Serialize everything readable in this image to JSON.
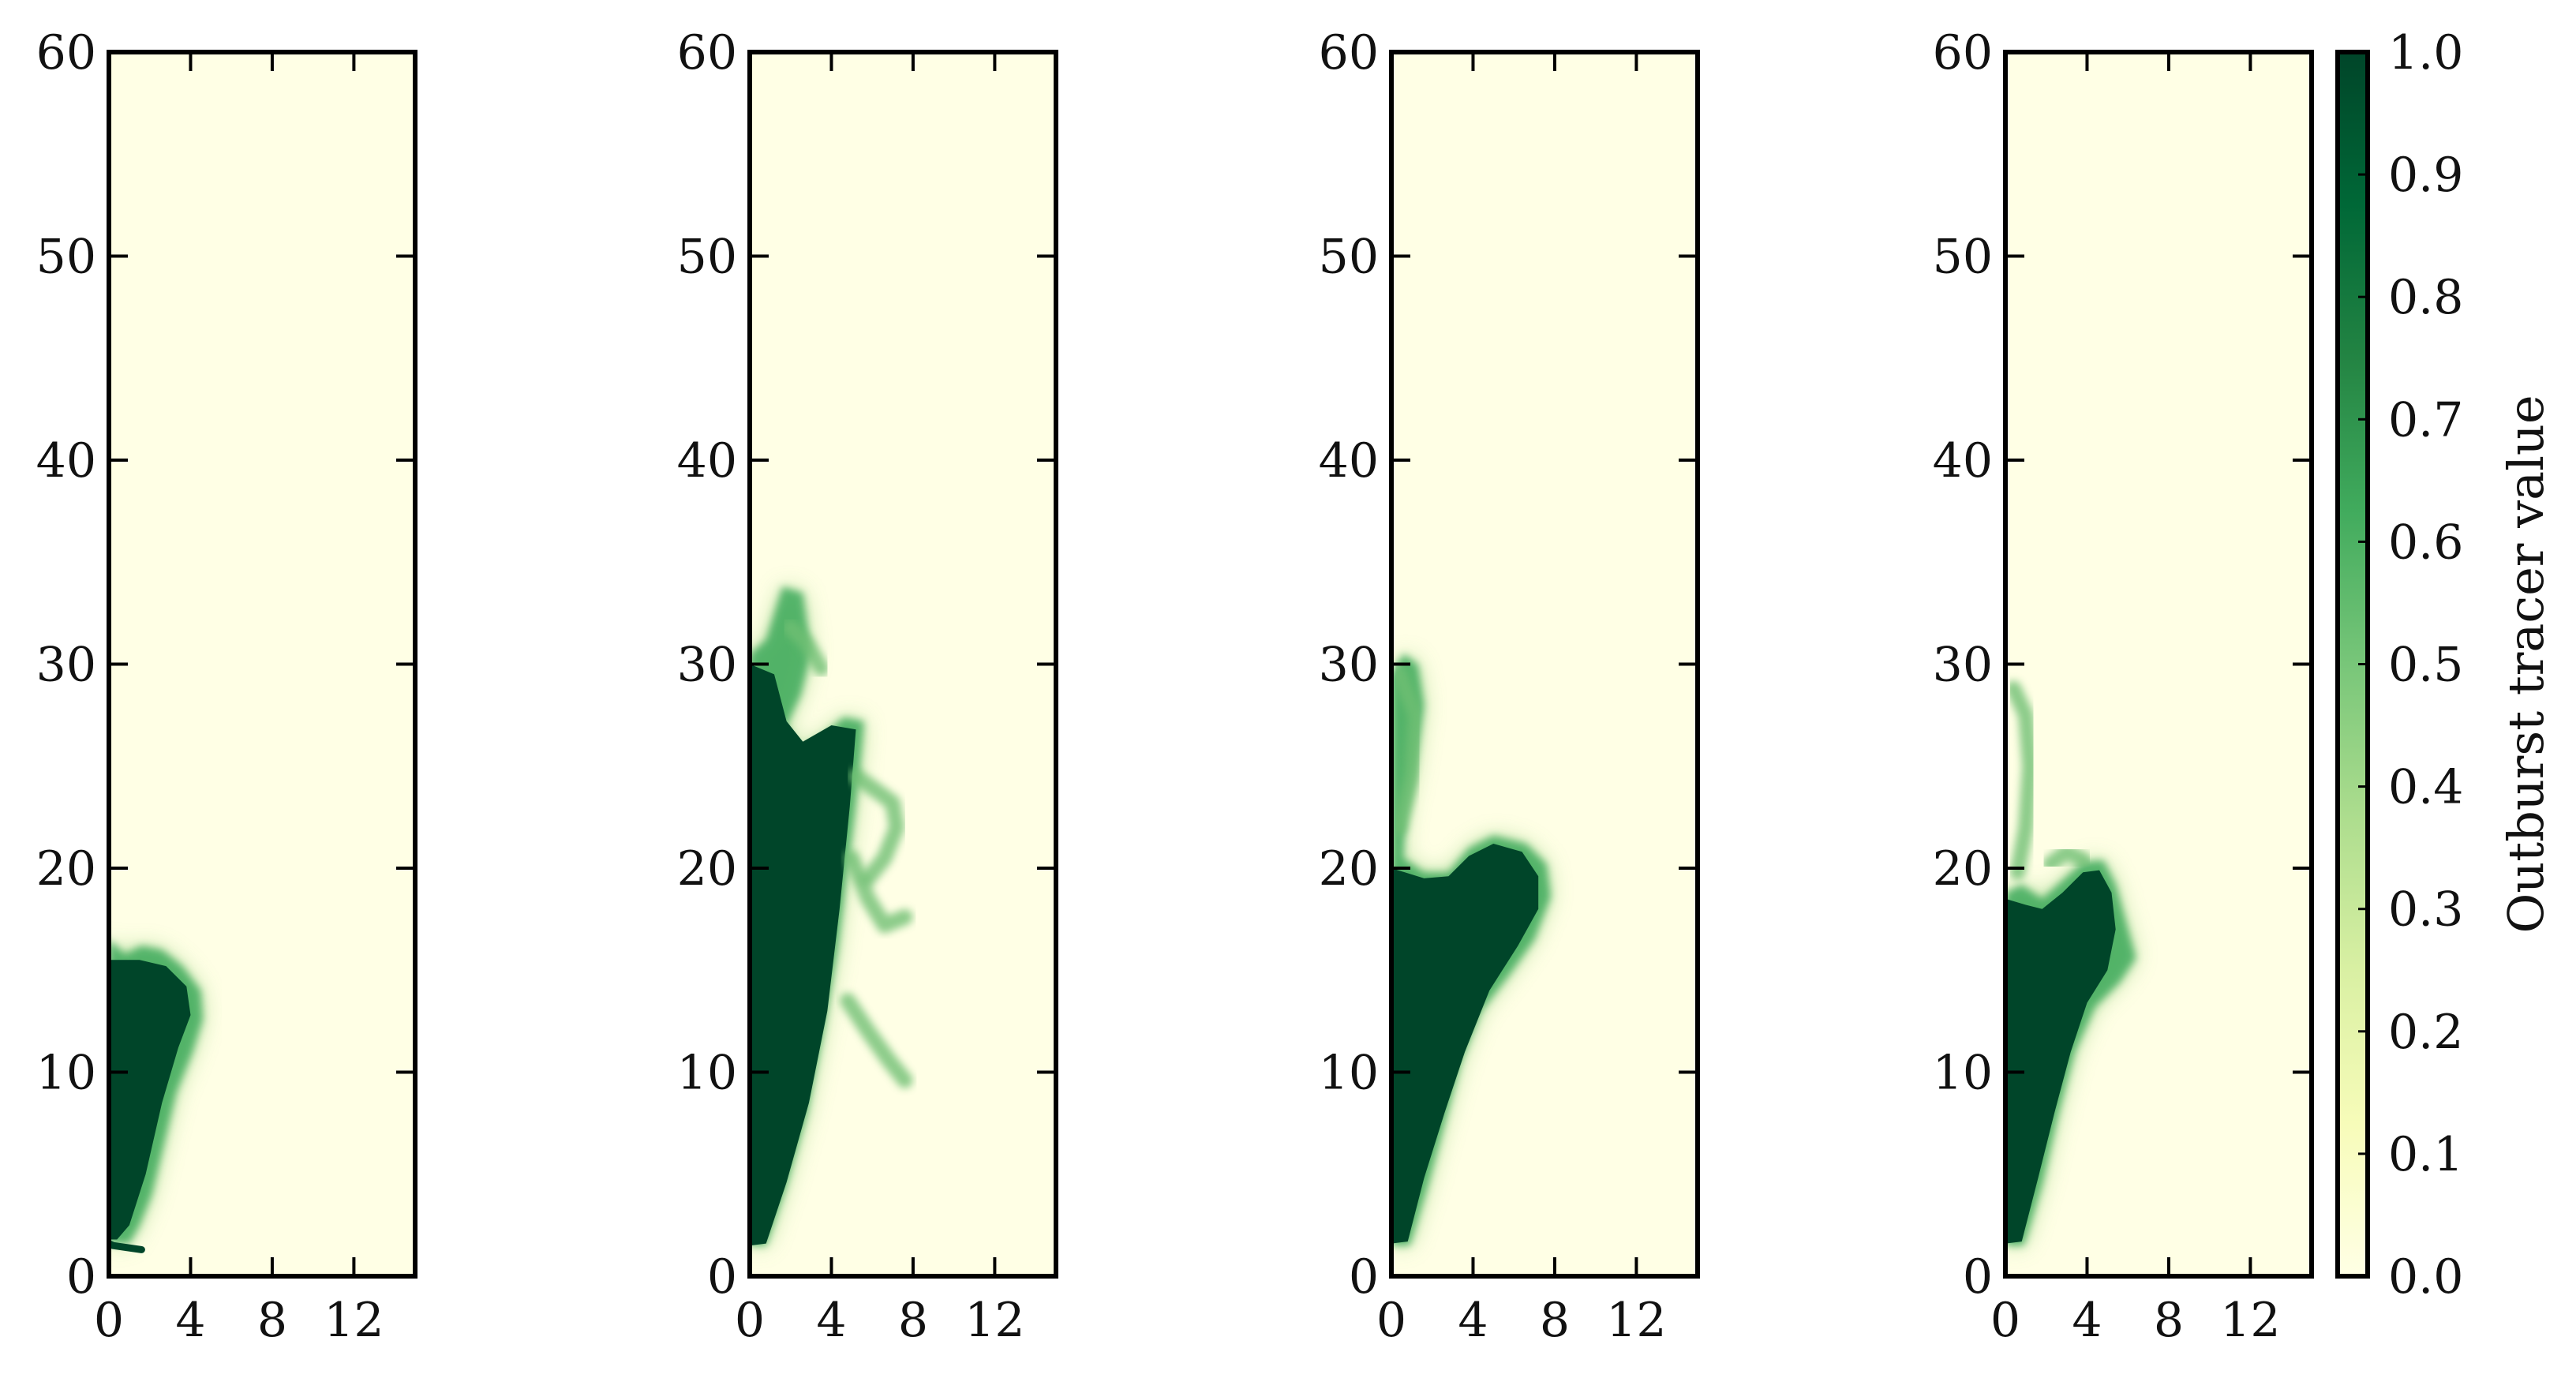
{
  "chart_data": {
    "type": "heatmap",
    "colormap": "Greens",
    "colors": {
      "low": "#ffffe5",
      "mid": "#78c679",
      "high": "#004529",
      "frame": "#000000"
    },
    "panels": [
      {
        "id": "panel-1",
        "xlim": [
          0,
          15
        ],
        "ylim": [
          0,
          60
        ],
        "xticks": [
          0,
          4,
          8,
          12
        ],
        "yticks": [
          0,
          10,
          20,
          30,
          40,
          50,
          60
        ],
        "plume": {
          "base": [
            [
              0,
              1.6
            ],
            [
              0.2,
              1.5
            ],
            [
              1.6,
              1.3
            ]
          ],
          "outline": [
            [
              0,
              1.6
            ],
            [
              0,
              16.5
            ],
            [
              0.8,
              15.8
            ],
            [
              1.6,
              16.2
            ],
            [
              2.6,
              16
            ],
            [
              3.6,
              15.2
            ],
            [
              4.5,
              14
            ],
            [
              4.6,
              12.6
            ],
            [
              4.1,
              11
            ],
            [
              3.3,
              9
            ],
            [
              2.7,
              6.5
            ],
            [
              2.1,
              4
            ],
            [
              1.5,
              2.5
            ],
            [
              1.0,
              1.6
            ]
          ],
          "core": [
            [
              0,
              1.8
            ],
            [
              0,
              15.5
            ],
            [
              1.5,
              15.5
            ],
            [
              2.8,
              15.2
            ],
            [
              3.8,
              14.2
            ],
            [
              4.0,
              12.8
            ],
            [
              3.4,
              11.2
            ],
            [
              2.6,
              8.5
            ],
            [
              1.8,
              5
            ],
            [
              1.0,
              2.5
            ],
            [
              0.4,
              1.8
            ]
          ],
          "wisps": []
        }
      },
      {
        "id": "panel-2",
        "xlim": [
          0,
          15
        ],
        "ylim": [
          0,
          60
        ],
        "xticks": [
          0,
          4,
          8,
          12
        ],
        "yticks": [
          0,
          10,
          20,
          30,
          40,
          50,
          60
        ],
        "plume": {
          "outline": [
            [
              0,
              1.5
            ],
            [
              0,
              30.5
            ],
            [
              0.8,
              31.2
            ],
            [
              1.6,
              33.8
            ],
            [
              2.6,
              33.5
            ],
            [
              3.0,
              30.5
            ],
            [
              2.5,
              28.5
            ],
            [
              1.8,
              27
            ],
            [
              2.4,
              25.8
            ],
            [
              3.6,
              26.5
            ],
            [
              4.6,
              27.4
            ],
            [
              5.6,
              27.2
            ],
            [
              5.3,
              24
            ],
            [
              4.8,
              20
            ],
            [
              4.3,
              16
            ],
            [
              3.6,
              12
            ],
            [
              2.8,
              8
            ],
            [
              1.8,
              4.5
            ],
            [
              0.8,
              1.5
            ]
          ],
          "core": [
            [
              0,
              1.5
            ],
            [
              0,
              30
            ],
            [
              1.2,
              29.5
            ],
            [
              1.8,
              27.2
            ],
            [
              2.6,
              26.2
            ],
            [
              4.0,
              27.0
            ],
            [
              5.2,
              26.8
            ],
            [
              4.9,
              23
            ],
            [
              4.4,
              18
            ],
            [
              3.8,
              13
            ],
            [
              2.9,
              8.5
            ],
            [
              1.8,
              4.6
            ],
            [
              0.8,
              1.6
            ]
          ],
          "wisps": [
            [
              [
                5.2,
                24.5
              ],
              [
                6.2,
                23.8
              ],
              [
                7.0,
                23.2
              ],
              [
                7.2,
                22.0
              ],
              [
                6.6,
                20.5
              ],
              [
                5.8,
                19.5
              ]
            ],
            [
              [
                5.0,
                20.5
              ],
              [
                5.8,
                18.5
              ],
              [
                6.6,
                17.2
              ],
              [
                7.6,
                17.6
              ]
            ],
            [
              [
                4.8,
                13.5
              ],
              [
                5.8,
                12.0
              ],
              [
                6.8,
                10.6
              ],
              [
                7.6,
                9.6
              ]
            ],
            [
              [
                2.0,
                31.8
              ],
              [
                2.8,
                31.0
              ],
              [
                3.5,
                29.8
              ]
            ]
          ]
        }
      },
      {
        "id": "panel-3",
        "xlim": [
          0,
          15
        ],
        "ylim": [
          0,
          60
        ],
        "xticks": [
          0,
          4,
          8,
          12
        ],
        "yticks": [
          0,
          10,
          20,
          30,
          40,
          50,
          60
        ],
        "plume": {
          "outline": [
            [
              0,
              1.5
            ],
            [
              0,
              29.5
            ],
            [
              0.6,
              30.5
            ],
            [
              1.3,
              30.0
            ],
            [
              1.6,
              28.0
            ],
            [
              1.2,
              25.0
            ],
            [
              0.7,
              22.5
            ],
            [
              0.6,
              20.5
            ],
            [
              1.6,
              19.8
            ],
            [
              2.8,
              19.8
            ],
            [
              3.8,
              21.0
            ],
            [
              5.0,
              21.6
            ],
            [
              6.6,
              21.2
            ],
            [
              7.6,
              20.2
            ],
            [
              7.8,
              18.6
            ],
            [
              7.0,
              16.5
            ],
            [
              5.8,
              14.8
            ],
            [
              4.4,
              13.0
            ],
            [
              3.4,
              10.5
            ],
            [
              2.6,
              7.5
            ],
            [
              1.8,
              4.5
            ],
            [
              0.9,
              1.5
            ]
          ],
          "core": [
            [
              0,
              1.6
            ],
            [
              0,
              20.0
            ],
            [
              1.6,
              19.5
            ],
            [
              2.8,
              19.6
            ],
            [
              3.8,
              20.6
            ],
            [
              5.0,
              21.2
            ],
            [
              6.4,
              20.8
            ],
            [
              7.2,
              19.6
            ],
            [
              7.2,
              18.0
            ],
            [
              6.2,
              16.2
            ],
            [
              4.8,
              14.0
            ],
            [
              3.6,
              11.0
            ],
            [
              2.6,
              8.0
            ],
            [
              1.6,
              4.8
            ],
            [
              0.8,
              1.7
            ]
          ],
          "wisps": [
            [
              [
                0.4,
                29.5
              ],
              [
                1.2,
                27.5
              ],
              [
                1.0,
                24.5
              ],
              [
                0.4,
                22.0
              ]
            ]
          ]
        }
      },
      {
        "id": "panel-4",
        "xlim": [
          0,
          15
        ],
        "ylim": [
          0,
          60
        ],
        "xticks": [
          0,
          4,
          8,
          12
        ],
        "yticks": [
          0,
          10,
          20,
          30,
          40,
          50,
          60
        ],
        "plume": {
          "outline": [
            [
              0,
              1.5
            ],
            [
              0,
              18.8
            ],
            [
              0.8,
              19.2
            ],
            [
              1.8,
              18.5
            ],
            [
              2.8,
              19.4
            ],
            [
              3.8,
              20.3
            ],
            [
              4.8,
              20.4
            ],
            [
              5.4,
              19.2
            ],
            [
              5.9,
              17.4
            ],
            [
              6.4,
              15.6
            ],
            [
              5.6,
              14.4
            ],
            [
              4.4,
              13.2
            ],
            [
              3.4,
              11.0
            ],
            [
              2.6,
              8.0
            ],
            [
              1.8,
              4.5
            ],
            [
              0.9,
              1.5
            ]
          ],
          "core": [
            [
              0,
              1.6
            ],
            [
              0,
              18.5
            ],
            [
              1.0,
              18.2
            ],
            [
              1.8,
              18.0
            ],
            [
              2.8,
              18.8
            ],
            [
              3.8,
              19.8
            ],
            [
              4.6,
              19.9
            ],
            [
              5.2,
              18.8
            ],
            [
              5.4,
              17.0
            ],
            [
              5.0,
              15.0
            ],
            [
              4.0,
              13.4
            ],
            [
              3.2,
              11.0
            ],
            [
              2.4,
              8.0
            ],
            [
              1.6,
              4.8
            ],
            [
              0.8,
              1.7
            ]
          ],
          "wisps": [
            [
              [
                0.4,
                28.8
              ],
              [
                1.0,
                27.5
              ],
              [
                1.2,
                25.0
              ],
              [
                1.0,
                22.0
              ],
              [
                0.6,
                19.8
              ]
            ],
            [
              [
                2.2,
                20.2
              ],
              [
                3.0,
                20.8
              ],
              [
                3.8,
                20.4
              ]
            ]
          ]
        }
      }
    ],
    "colorbar": {
      "label": "Outburst tracer value",
      "range": [
        0.0,
        1.0
      ],
      "ticks": [
        "0.0",
        "0.1",
        "0.2",
        "0.3",
        "0.4",
        "0.5",
        "0.6",
        "0.7",
        "0.8",
        "0.9",
        "1.0"
      ],
      "stops": [
        "#ffffe5",
        "#f7fcb9",
        "#d9f0a3",
        "#addd8e",
        "#78c679",
        "#41ab5d",
        "#238443",
        "#006837",
        "#004529"
      ]
    }
  }
}
